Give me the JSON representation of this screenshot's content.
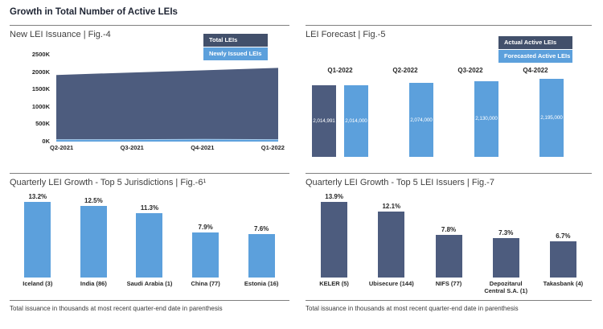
{
  "header": {
    "title": "Growth in Total Number of Active LEIs"
  },
  "colors": {
    "dark_blue": "#4D5C7E",
    "light_blue": "#5CA0DC",
    "legend_dark": "#42506B",
    "divider_gray": "#7f7f7f",
    "text_dark": "#262626"
  },
  "footnote_shared": "Total issuance in thousands at most recent quarter-end date in parenthesis",
  "chart_data": [
    {
      "id": "fig4",
      "type": "area",
      "title": "New LEI Issuance | Fig.-4",
      "x": [
        "Q2-2021",
        "Q3-2021",
        "Q4-2021",
        "Q1-2022"
      ],
      "y_ticks": [
        "2500K",
        "2000K",
        "1500K",
        "1000K",
        "500K",
        "0K"
      ],
      "ylim_k": [
        0,
        2500
      ],
      "legend_position": "top-right",
      "grid": false,
      "series": [
        {
          "name": "Total LEIs",
          "color": "#4D5C7E",
          "values_k": [
            1900,
            1967,
            2033,
            2100
          ]
        },
        {
          "name": "Newly Issued LEIs",
          "color": "#5CA0DC",
          "values_k": [
            55,
            55,
            65,
            55
          ]
        }
      ]
    },
    {
      "id": "fig5",
      "type": "bar",
      "title": "LEI Forecast | Fig.-5",
      "categories": [
        "Q1-2022",
        "Q2-2022",
        "Q3-2022",
        "Q4-2022"
      ],
      "legend_position": "top-right",
      "category_label_position": "above-bars",
      "data_label_style": "white-inside",
      "series": [
        {
          "name": "Actual Active LEIs",
          "color": "#4D5C7E",
          "values": [
            2014991,
            null,
            null,
            null
          ],
          "labels": [
            "2,014,991",
            null,
            null,
            null
          ]
        },
        {
          "name": "Forecasted Active LEIs",
          "color": "#5CA0DC",
          "values": [
            2014000,
            2074000,
            2130000,
            2195000
          ],
          "labels": [
            "2,014,000",
            "2,074,000",
            "2,130,000",
            "2,195,000"
          ]
        }
      ]
    },
    {
      "id": "fig6",
      "type": "bar",
      "title": "Quarterly LEI Growth - Top 5 Jurisdictions | Fig.-6¹",
      "categories": [
        "Iceland (3)",
        "India (86)",
        "Saudi Arabia (1)",
        "China (77)",
        "Estonia (16)"
      ],
      "values": [
        13.2,
        12.5,
        11.3,
        7.9,
        7.6
      ],
      "value_labels": [
        "13.2%",
        "12.5%",
        "11.3%",
        "7.9%",
        "7.6%"
      ],
      "bar_color": "#5CA0DC",
      "footnote": "Total issuance in thousands at most recent quarter-end date in parenthesis"
    },
    {
      "id": "fig7",
      "type": "bar",
      "title": "Quarterly LEI Growth - Top 5 LEI Issuers | Fig.-7",
      "categories": [
        "KELER (5)",
        "Ubisecure (144)",
        "NIFS (77)",
        "Depozitarul Central S.A. (1)",
        "Takasbank (4)"
      ],
      "values": [
        13.9,
        12.1,
        7.8,
        7.3,
        6.7
      ],
      "value_labels": [
        "13.9%",
        "12.1%",
        "7.8%",
        "7.3%",
        "6.7%"
      ],
      "bar_color": "#4D5C7E",
      "footnote": "Total issuance in thousands at most recent quarter-end date in parenthesis"
    }
  ]
}
